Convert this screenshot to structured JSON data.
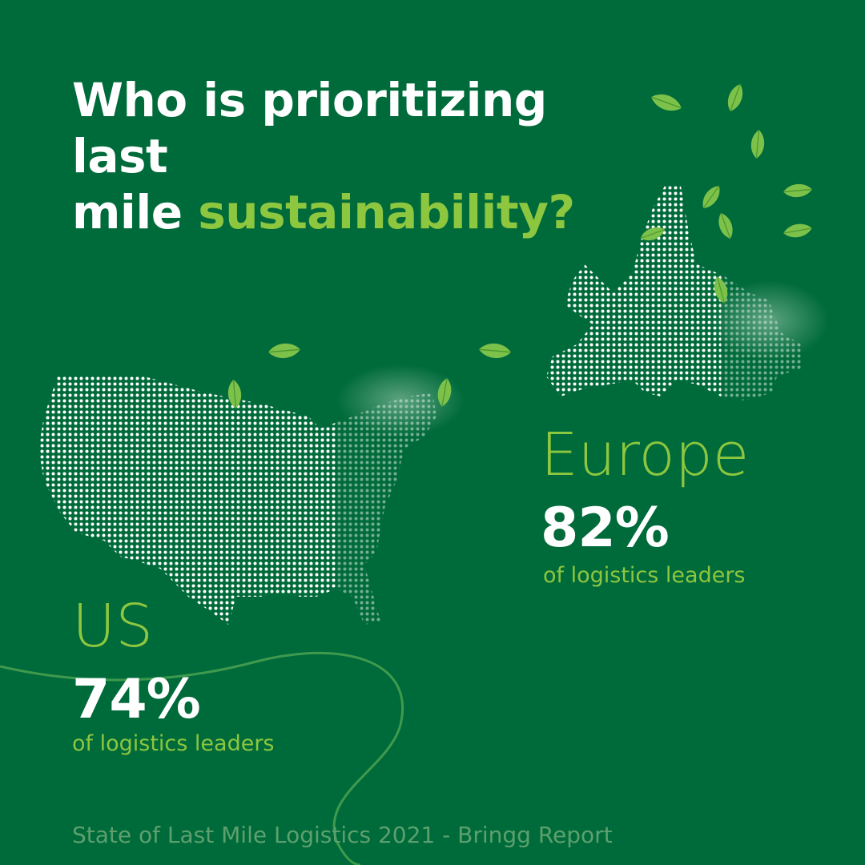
{
  "title": {
    "line1": "Who is prioritizing last",
    "line2_prefix": "mile",
    "line2_accent": "sustainability?"
  },
  "regions": {
    "europe": {
      "name": "Europe",
      "percent": "82%",
      "caption": "of logistics leaders"
    },
    "us": {
      "name": "US",
      "percent": "74%",
      "caption": "of logistics leaders"
    }
  },
  "footer": "State of Last Mile Logistics 2021 - Bringg Report",
  "colors": {
    "background": "#006b3a",
    "accent": "#8dc63f",
    "dots": "#ffffff",
    "leaf": "#7cc24a"
  }
}
